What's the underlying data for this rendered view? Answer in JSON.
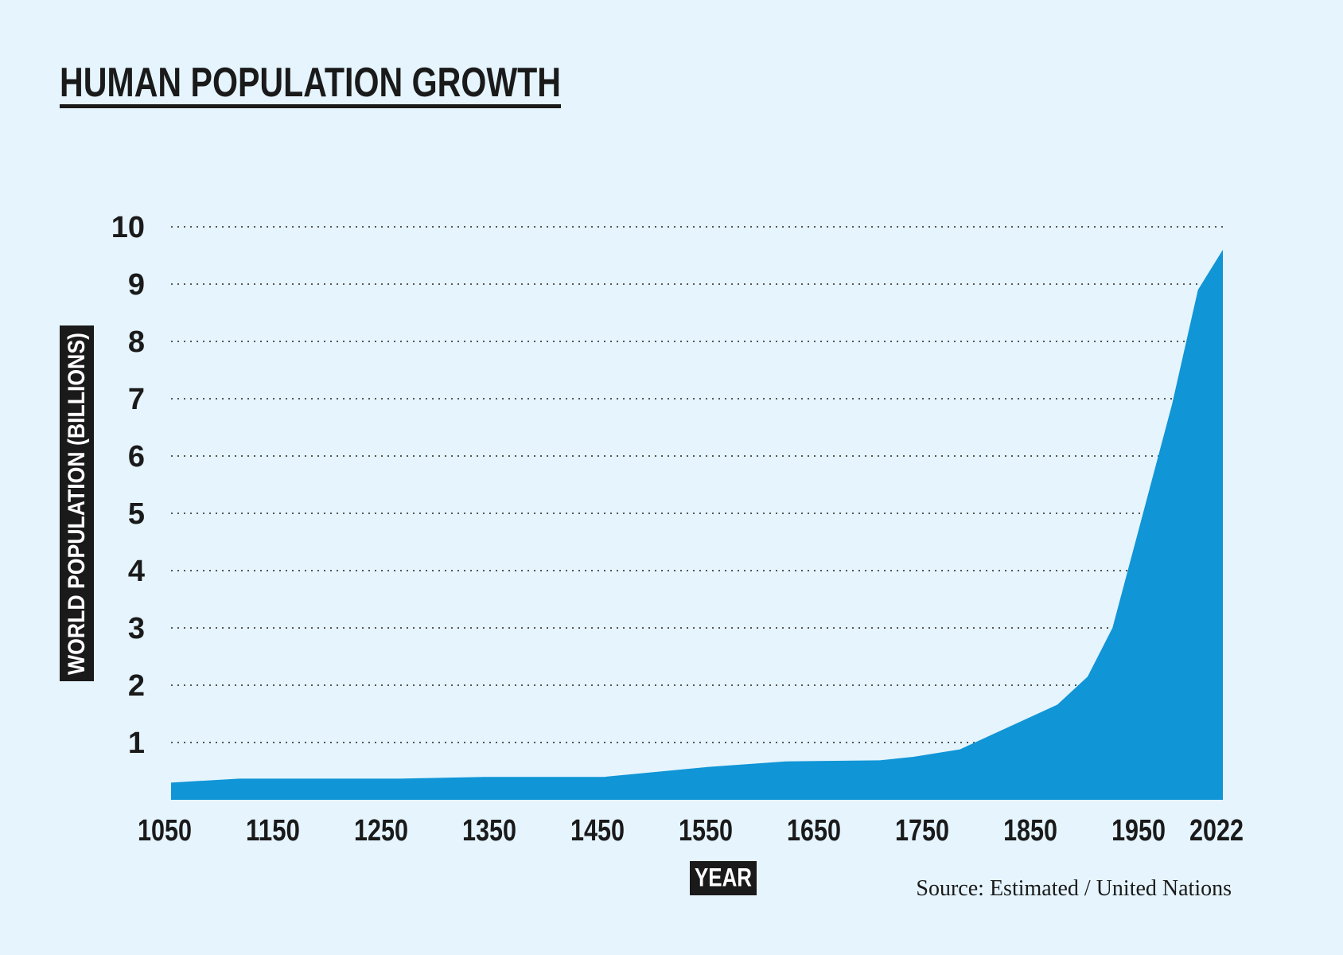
{
  "chart_data": {
    "type": "area",
    "title": "HUMAN POPULATION GROWTH",
    "xlabel": "YEAR",
    "ylabel": "WORLD POPULATION (BILLIONS)",
    "source": "Source: Estimated / United Nations",
    "x": [
      1050,
      1113,
      1262,
      1340,
      1450,
      1544,
      1618,
      1705,
      1736,
      1779,
      1869,
      1897,
      1920,
      1944,
      1975,
      1999,
      2022
    ],
    "values": [
      0.3,
      0.37,
      0.37,
      0.4,
      0.4,
      0.57,
      0.67,
      0.69,
      0.75,
      0.88,
      1.66,
      2.15,
      3.0,
      4.7,
      6.9,
      8.9,
      9.6
    ],
    "color": "#1095d6",
    "xlim": [
      1050,
      2022
    ],
    "xticks": [
      1050,
      1150,
      1250,
      1350,
      1450,
      1550,
      1650,
      1750,
      1850,
      1950,
      2022
    ],
    "ylim": [
      0,
      10
    ],
    "yticks": [
      1,
      2,
      3,
      4,
      5,
      6,
      7,
      8,
      9,
      10
    ],
    "grid": true
  }
}
